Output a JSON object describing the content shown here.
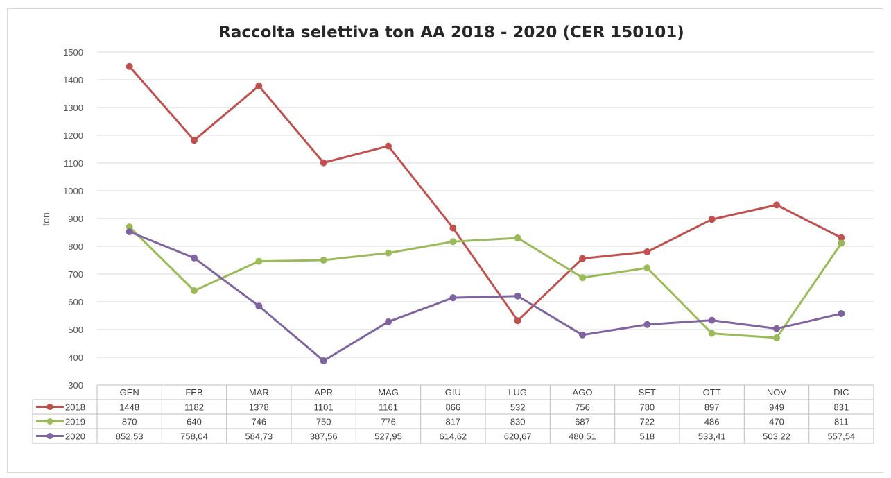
{
  "chart_data": {
    "type": "line",
    "title": "Raccolta selettiva ton AA 2018 - 2020 (CER 150101)",
    "ylabel": "ton",
    "xlabel": "",
    "ylim": [
      300,
      1500
    ],
    "yticks": [
      "300",
      "400",
      "500",
      "600",
      "700",
      "800",
      "900",
      "1000",
      "1100",
      "1200",
      "1300",
      "1400",
      "1500"
    ],
    "grid": true,
    "legend": "data-table",
    "categories": [
      "GEN",
      "FEB",
      "MAR",
      "APR",
      "MAG",
      "GIU",
      "LUG",
      "AGO",
      "SET",
      "OTT",
      "NOV",
      "DIC"
    ],
    "series": [
      {
        "name": "2018",
        "color": "#c0504d",
        "values": [
          1448,
          1182,
          1378,
          1101,
          1161,
          866,
          532,
          756,
          780,
          897,
          949,
          831
        ],
        "labels": [
          "1448",
          "1182",
          "1378",
          "1101",
          "1161",
          "866",
          "532",
          "756",
          "780",
          "897",
          "949",
          "831"
        ]
      },
      {
        "name": "2019",
        "color": "#9bbb59",
        "values": [
          870,
          640,
          746,
          750,
          776,
          817,
          830,
          687,
          722,
          486,
          470,
          811
        ],
        "labels": [
          "870",
          "640",
          "746",
          "750",
          "776",
          "817",
          "830",
          "687",
          "722",
          "486",
          "470",
          "811"
        ]
      },
      {
        "name": "2020",
        "color": "#8064a2",
        "values": [
          852.53,
          758.04,
          584.73,
          387.56,
          527.95,
          614.62,
          620.67,
          480.51,
          518,
          533.41,
          503.22,
          557.54
        ],
        "labels": [
          "852,53",
          "758,04",
          "584,73",
          "387,56",
          "527,95",
          "614,62",
          "620,67",
          "480,51",
          "518",
          "533,41",
          "503,22",
          "557,54"
        ]
      }
    ]
  }
}
